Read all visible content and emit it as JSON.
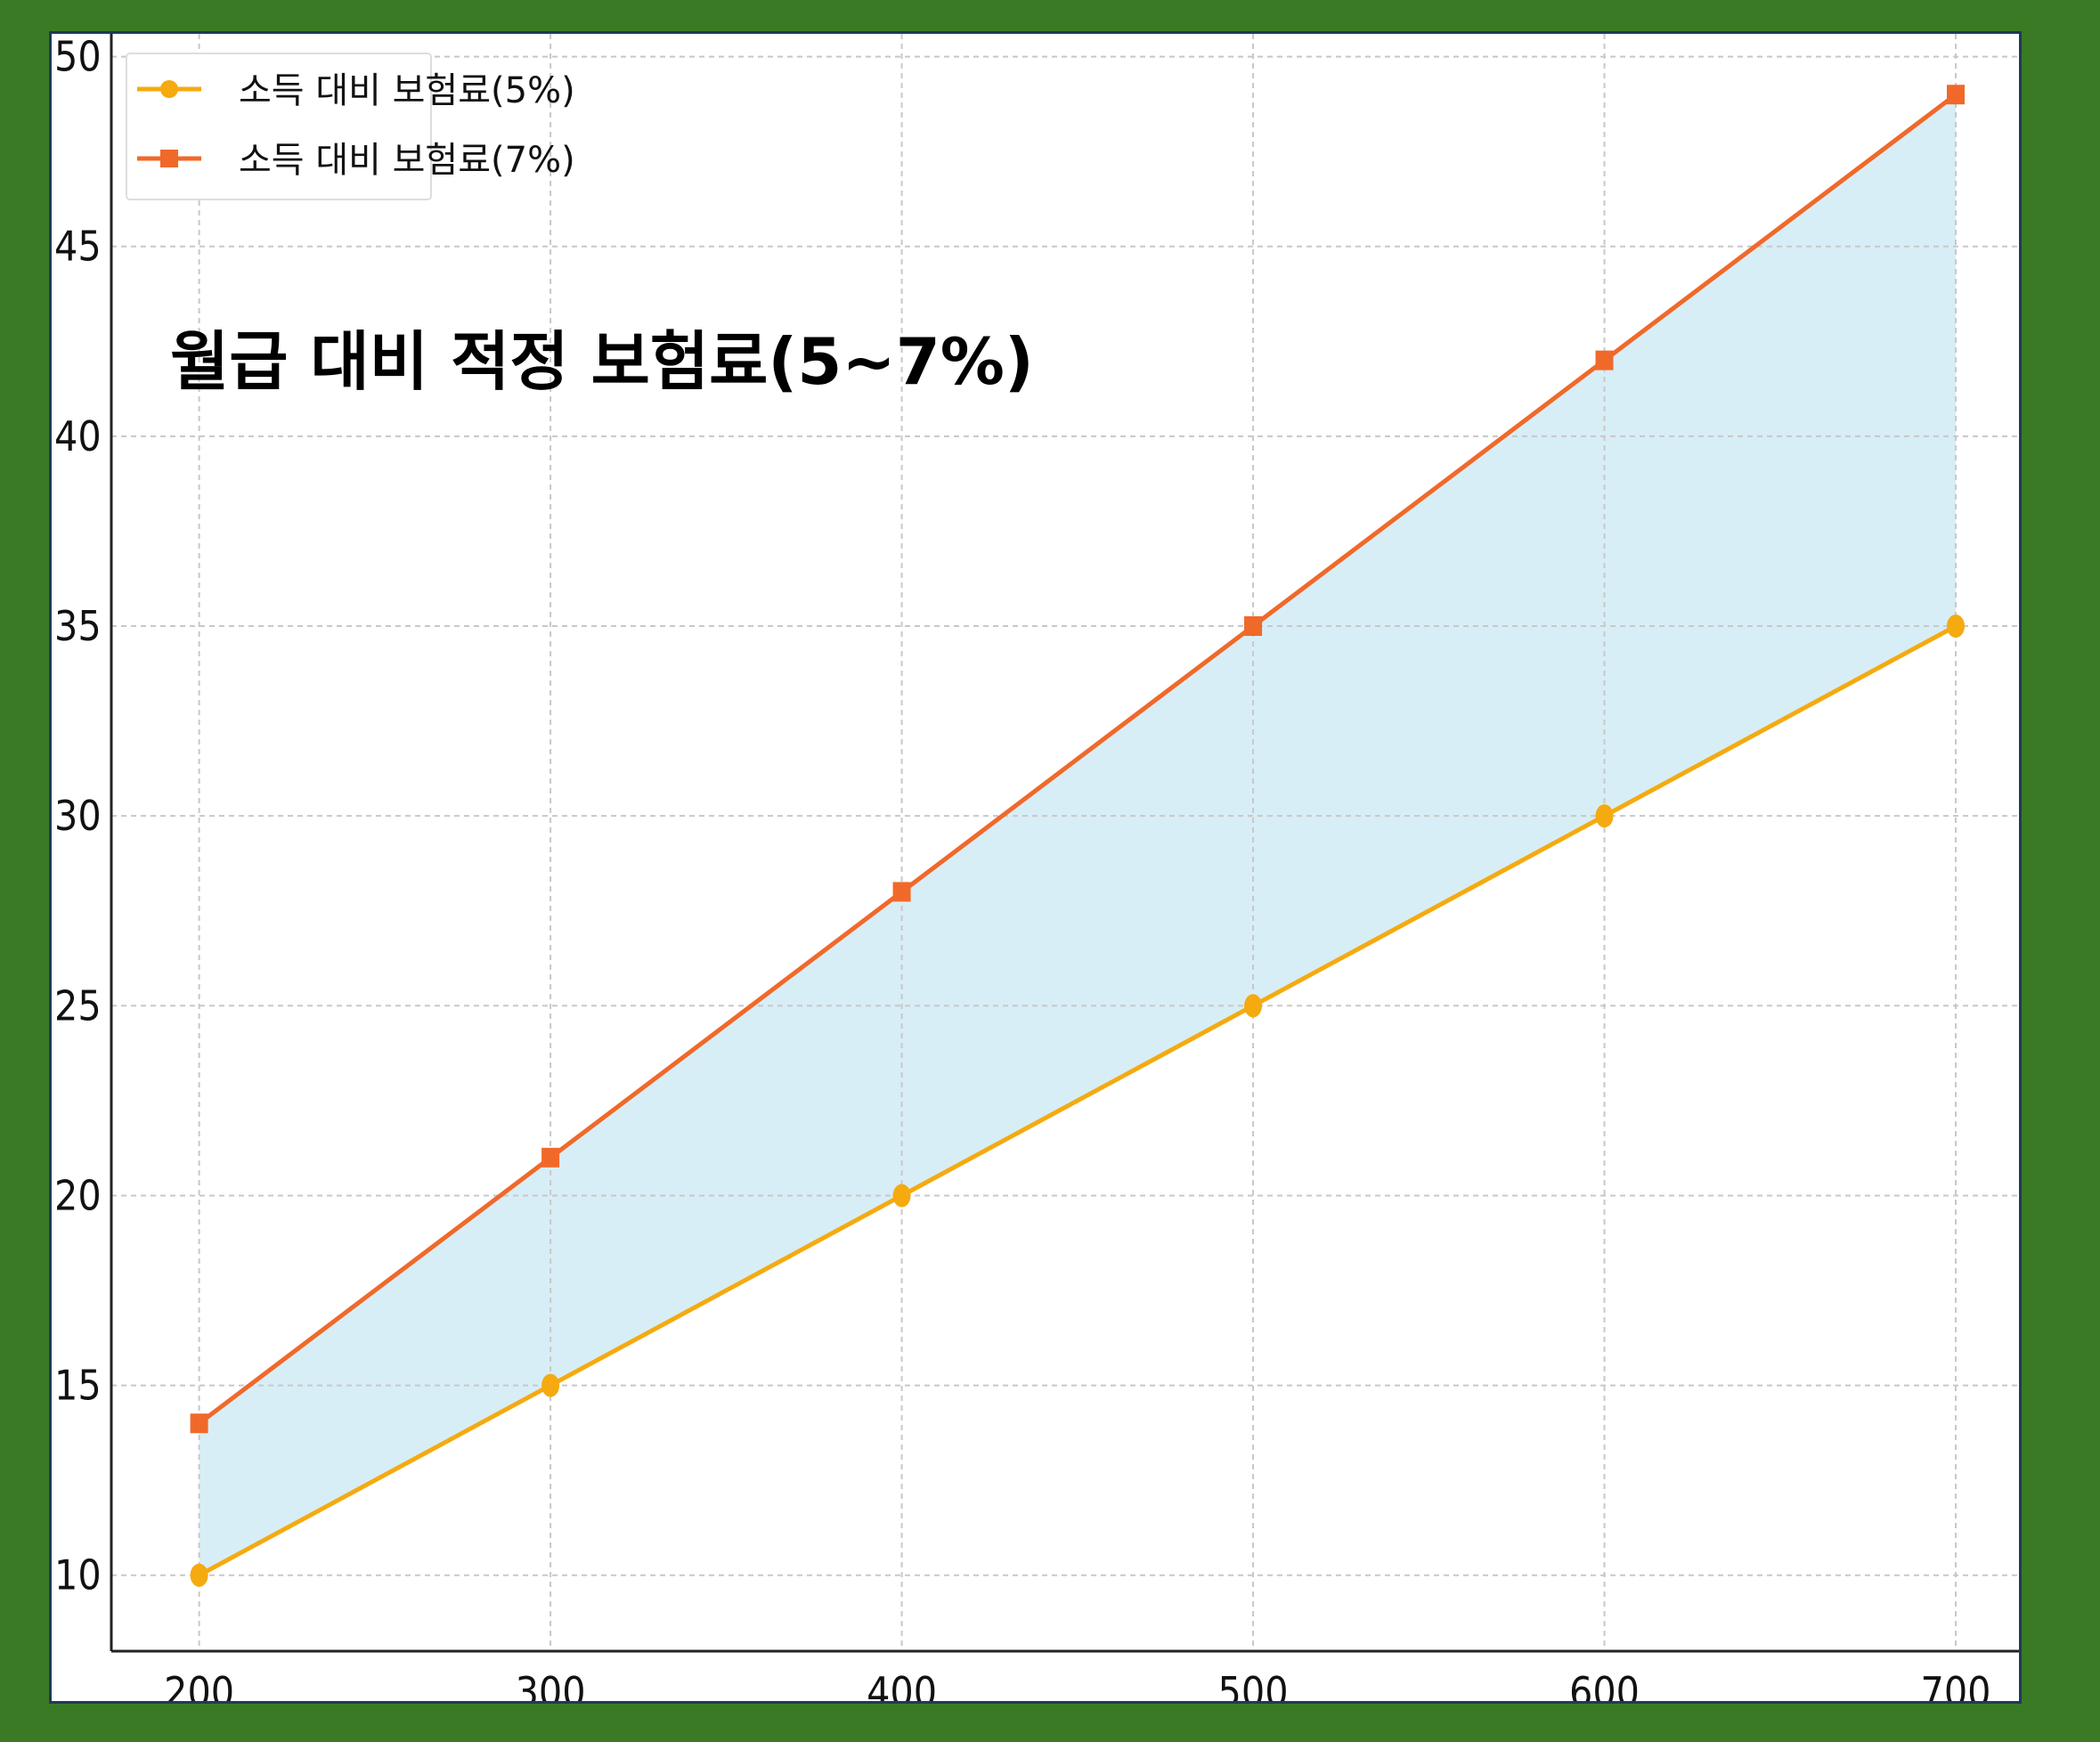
{
  "chart_data": {
    "type": "area",
    "title": "월급 대비 적정 보험료(5~7%)",
    "xlabel": "",
    "ylabel": "",
    "x": [
      200,
      300,
      400,
      500,
      600,
      700
    ],
    "xticks": [
      200,
      300,
      400,
      500,
      600,
      700
    ],
    "yticks": [
      10,
      15,
      20,
      25,
      30,
      35,
      40,
      45,
      50
    ],
    "xlim": [
      175,
      718
    ],
    "ylim": [
      8.0,
      50.6
    ],
    "grid": true,
    "legend_position": "top-left",
    "fill_between": {
      "color": "#d8eef6"
    },
    "series": [
      {
        "name": "소득 대비 보험료(5%)",
        "values": [
          10,
          15,
          20,
          25,
          30,
          35
        ],
        "color": "#f5aa0f",
        "marker": "circle"
      },
      {
        "name": "소득 대비 보험료(7%)",
        "values": [
          14,
          21,
          28,
          35,
          42,
          49
        ],
        "color": "#f0692a",
        "marker": "square"
      }
    ]
  },
  "colors": {
    "background": "#3a7a24",
    "panel": "#ffffff",
    "panel_border": "#1e3a5a",
    "grid": "#c8c8c8"
  }
}
